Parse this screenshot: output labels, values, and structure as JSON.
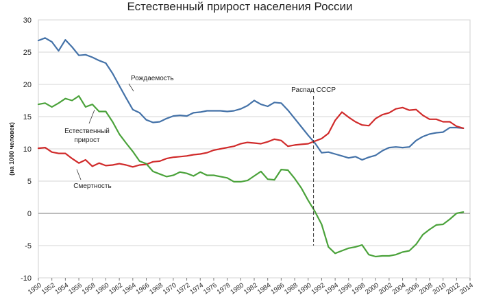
{
  "chart_data": {
    "type": "line",
    "title": "Естественный прирост населения России",
    "ylabel": "(на 1000 человек)",
    "xlabel": "",
    "ylim": [
      -10,
      30
    ],
    "yticks": [
      -10,
      -5,
      0,
      5,
      10,
      15,
      20,
      25,
      30
    ],
    "xticks": [
      "1950",
      "1952",
      "1954",
      "1956",
      "1958",
      "1960",
      "1962",
      "1964",
      "1966",
      "1968",
      "1970",
      "1972",
      "1974",
      "1976",
      "1978",
      "1980",
      "1982",
      "1984",
      "1986",
      "1988",
      "1990",
      "1992",
      "1994",
      "1996",
      "1998",
      "2000",
      "2002",
      "2004",
      "2006",
      "2008",
      "2010",
      "2012",
      "2014"
    ],
    "grid": true,
    "x": [
      1950,
      1951,
      1952,
      1953,
      1954,
      1955,
      1956,
      1957,
      1958,
      1959,
      1960,
      1961,
      1962,
      1963,
      1964,
      1965,
      1966,
      1967,
      1968,
      1969,
      1970,
      1971,
      1972,
      1973,
      1974,
      1975,
      1976,
      1977,
      1978,
      1979,
      1980,
      1981,
      1982,
      1983,
      1984,
      1985,
      1986,
      1987,
      1988,
      1989,
      1990,
      1991,
      1992,
      1993,
      1994,
      1995,
      1996,
      1997,
      1998,
      1999,
      2000,
      2001,
      2002,
      2003,
      2004,
      2005,
      2006,
      2007,
      2008,
      2009,
      2010,
      2011,
      2012,
      2013
    ],
    "series": [
      {
        "name": "Рождаемость",
        "color": "#4472a8",
        "values": [
          26.8,
          27.2,
          26.6,
          25.2,
          26.9,
          25.8,
          24.5,
          24.6,
          24.2,
          23.7,
          23.3,
          21.7,
          19.8,
          17.9,
          16.1,
          15.6,
          14.5,
          14.1,
          14.2,
          14.7,
          15.1,
          15.2,
          15.1,
          15.6,
          15.7,
          15.9,
          15.9,
          15.9,
          15.8,
          15.9,
          16.2,
          16.7,
          17.5,
          16.9,
          16.6,
          17.2,
          17.1,
          16.0,
          14.7,
          13.4,
          12.1,
          10.9,
          9.4,
          9.5,
          9.2,
          8.9,
          8.6,
          8.8,
          8.3,
          8.7,
          9.0,
          9.7,
          10.2,
          10.3,
          10.2,
          10.3,
          11.3,
          11.9,
          12.3,
          12.5,
          12.6,
          13.3,
          13.3,
          13.2
        ]
      },
      {
        "name": "Смертность",
        "color": "#d02a2a",
        "values": [
          10.1,
          10.2,
          9.5,
          9.3,
          9.3,
          8.5,
          7.8,
          8.3,
          7.3,
          7.8,
          7.4,
          7.5,
          7.7,
          7.5,
          7.2,
          7.5,
          7.6,
          8.0,
          8.1,
          8.5,
          8.7,
          8.8,
          8.9,
          9.1,
          9.2,
          9.4,
          9.8,
          10.0,
          10.2,
          10.4,
          10.8,
          11.0,
          10.9,
          10.8,
          11.1,
          11.5,
          11.3,
          10.4,
          10.6,
          10.7,
          10.8,
          11.2,
          11.6,
          12.4,
          14.4,
          15.7,
          14.9,
          14.2,
          13.7,
          13.6,
          14.7,
          15.3,
          15.6,
          16.2,
          16.4,
          16.0,
          16.1,
          15.2,
          14.6,
          14.6,
          14.2,
          14.2,
          13.5,
          13.2
        ]
      },
      {
        "name": "Естественный прирост",
        "color": "#4aa23a",
        "values": [
          16.9,
          17.1,
          16.5,
          17.1,
          17.8,
          17.5,
          18.2,
          16.5,
          16.9,
          15.8,
          15.8,
          14.2,
          12.3,
          10.9,
          9.6,
          8.1,
          7.7,
          6.5,
          6.1,
          5.7,
          5.9,
          6.4,
          6.2,
          5.8,
          6.4,
          5.9,
          5.9,
          5.7,
          5.5,
          4.9,
          4.9,
          5.1,
          5.8,
          6.5,
          5.3,
          5.2,
          6.8,
          6.7,
          5.4,
          3.9,
          2.0,
          0.3,
          -1.7,
          -5.2,
          -6.2,
          -5.8,
          -5.4,
          -5.2,
          -4.9,
          -6.4,
          -6.7,
          -6.6,
          -6.6,
          -6.4,
          -6.0,
          -5.8,
          -4.8,
          -3.3,
          -2.5,
          -1.8,
          -1.7,
          -0.9,
          0.0,
          0.2
        ]
      }
    ],
    "annotations": [
      {
        "text": "Рождаемость",
        "target": "Рождаемость"
      },
      {
        "text": "Распад СССР",
        "x": 1991
      },
      {
        "lines": [
          "Естественный",
          "прирост"
        ],
        "target": "Естественный прирост"
      },
      {
        "text": "Смертность",
        "target": "Смертность"
      }
    ]
  }
}
